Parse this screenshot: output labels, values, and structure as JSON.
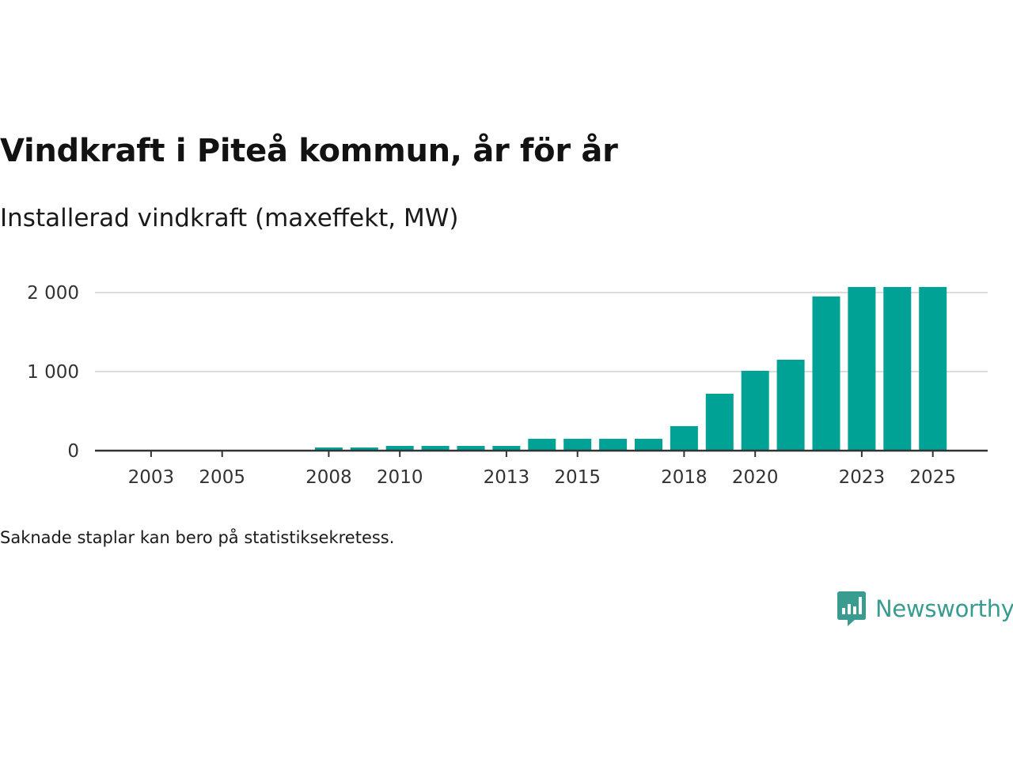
{
  "title": "Vindkraft i Piteå kommun, år för år",
  "subtitle": "Installerad vindkraft (maxeffekt, MW)",
  "footnote": "Saknade staplar kan bero på statistiksekretess.",
  "logo": {
    "name": "Newsworthy"
  },
  "colors": {
    "bar": "#00a295",
    "logo": "#3a9b91"
  },
  "chart_data": {
    "type": "bar",
    "title": "Vindkraft i Piteå kommun, år för år",
    "ylabel": "Installerad vindkraft (maxeffekt, MW)",
    "xlabel": "",
    "ylim": [
      0,
      2100
    ],
    "yticks": [
      0,
      1000,
      2000
    ],
    "ytick_labels": [
      "0",
      "1 000",
      "2 000"
    ],
    "xtick_labels": [
      "2003",
      "2005",
      "2008",
      "2010",
      "2013",
      "2015",
      "2018",
      "2020",
      "2023",
      "2025"
    ],
    "grid": true,
    "categories": [
      "2002",
      "2003",
      "2004",
      "2005",
      "2006",
      "2007",
      "2008",
      "2009",
      "2010",
      "2011",
      "2012",
      "2013",
      "2014",
      "2015",
      "2016",
      "2017",
      "2018",
      "2019",
      "2020",
      "2021",
      "2022",
      "2023",
      "2024",
      "2025"
    ],
    "values": [
      null,
      null,
      null,
      null,
      null,
      null,
      40,
      40,
      60,
      60,
      60,
      60,
      150,
      150,
      150,
      150,
      310,
      720,
      1010,
      1150,
      1950,
      2070,
      2070,
      2070
    ]
  }
}
